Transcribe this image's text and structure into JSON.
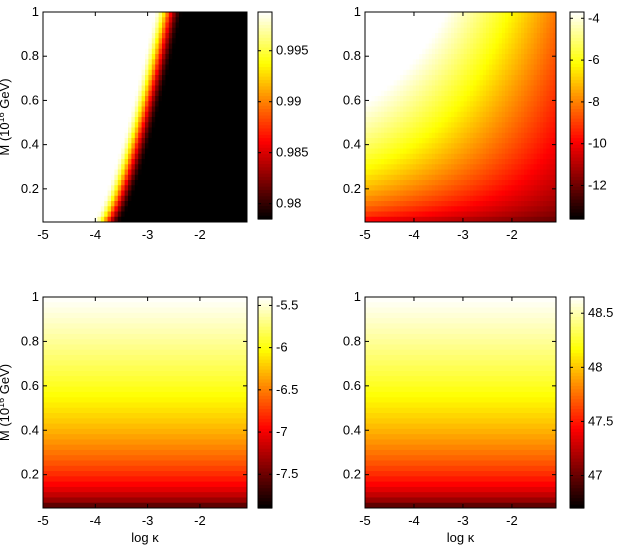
{
  "chart_data": [
    {
      "type": "heatmap",
      "panel": "top-left",
      "ylabel": "M (10^16 GeV)",
      "xlabel": "",
      "xlim": [
        -5,
        -1.1
      ],
      "ylim": [
        0.05,
        1
      ],
      "xticks": [
        "-5",
        "-4",
        "-3",
        "-2"
      ],
      "xtick_values": [
        -5,
        -4,
        -3,
        -2
      ],
      "yticks": [
        "0.2",
        "0.4",
        "0.6",
        "0.8",
        "1"
      ],
      "ytick_values": [
        0.2,
        0.4,
        0.6,
        0.8,
        1
      ],
      "colorbar_ticks": [
        "0.995",
        "0.99",
        "0.985",
        "0.98"
      ],
      "colorbar_tick_values": [
        0.995,
        0.99,
        0.985,
        0.98
      ],
      "colorbar_range": [
        0.9785,
        0.9988
      ],
      "pattern": "transition_x",
      "transition": {
        "x_at_y_min": -3.8,
        "x_at_y_max": -2.6,
        "width": 0.55
      },
      "grid": false
    },
    {
      "type": "heatmap",
      "panel": "top-right",
      "ylabel": "",
      "xlabel": "",
      "xlim": [
        -5,
        -1.1
      ],
      "ylim": [
        0.05,
        1
      ],
      "xticks": [
        "-5",
        "-4",
        "-3",
        "-2"
      ],
      "xtick_values": [
        -5,
        -4,
        -3,
        -2
      ],
      "yticks": [
        "0.2",
        "0.4",
        "0.6",
        "0.8",
        "1"
      ],
      "ytick_values": [
        0.2,
        0.4,
        0.6,
        0.8,
        1
      ],
      "colorbar_ticks": [
        "-4",
        "-6",
        "-8",
        "-10",
        "-12"
      ],
      "colorbar_tick_values": [
        -4,
        -6,
        -8,
        -10,
        -12
      ],
      "colorbar_range": [
        -13.6,
        -3.7
      ],
      "pattern": "diagonal",
      "grid": false
    },
    {
      "type": "heatmap",
      "panel": "bottom-left",
      "ylabel": "M (10^16 GeV)",
      "xlabel": "log κ",
      "xlim": [
        -5,
        -1.1
      ],
      "ylim": [
        0.05,
        1
      ],
      "xticks": [
        "-5",
        "-4",
        "-3",
        "-2"
      ],
      "xtick_values": [
        -5,
        -4,
        -3,
        -2
      ],
      "yticks": [
        "0.2",
        "0.4",
        "0.6",
        "0.8",
        "1"
      ],
      "ytick_values": [
        0.2,
        0.4,
        0.6,
        0.8,
        1
      ],
      "colorbar_ticks": [
        "-5.5",
        "-6",
        "-6.5",
        "-7",
        "-7.5"
      ],
      "colorbar_tick_values": [
        -5.5,
        -6,
        -6.5,
        -7,
        -7.5
      ],
      "colorbar_range": [
        -7.9,
        -5.4
      ],
      "pattern": "vertical",
      "grid": false
    },
    {
      "type": "heatmap",
      "panel": "bottom-right",
      "ylabel": "",
      "xlabel": "log κ",
      "xlim": [
        -5,
        -1.1
      ],
      "ylim": [
        0.05,
        1
      ],
      "xticks": [
        "-5",
        "-4",
        "-3",
        "-2"
      ],
      "xtick_values": [
        -5,
        -4,
        -3,
        -2
      ],
      "yticks": [
        "0.2",
        "0.4",
        "0.6",
        "0.8",
        "1"
      ],
      "ytick_values": [
        0.2,
        0.4,
        0.6,
        0.8,
        1
      ],
      "colorbar_ticks": [
        "48.5",
        "48",
        "47.5",
        "47"
      ],
      "colorbar_tick_values": [
        48.5,
        48,
        47.5,
        47
      ],
      "colorbar_range": [
        46.7,
        48.65
      ],
      "pattern": "vertical",
      "grid": false
    }
  ],
  "colormap": "hot"
}
